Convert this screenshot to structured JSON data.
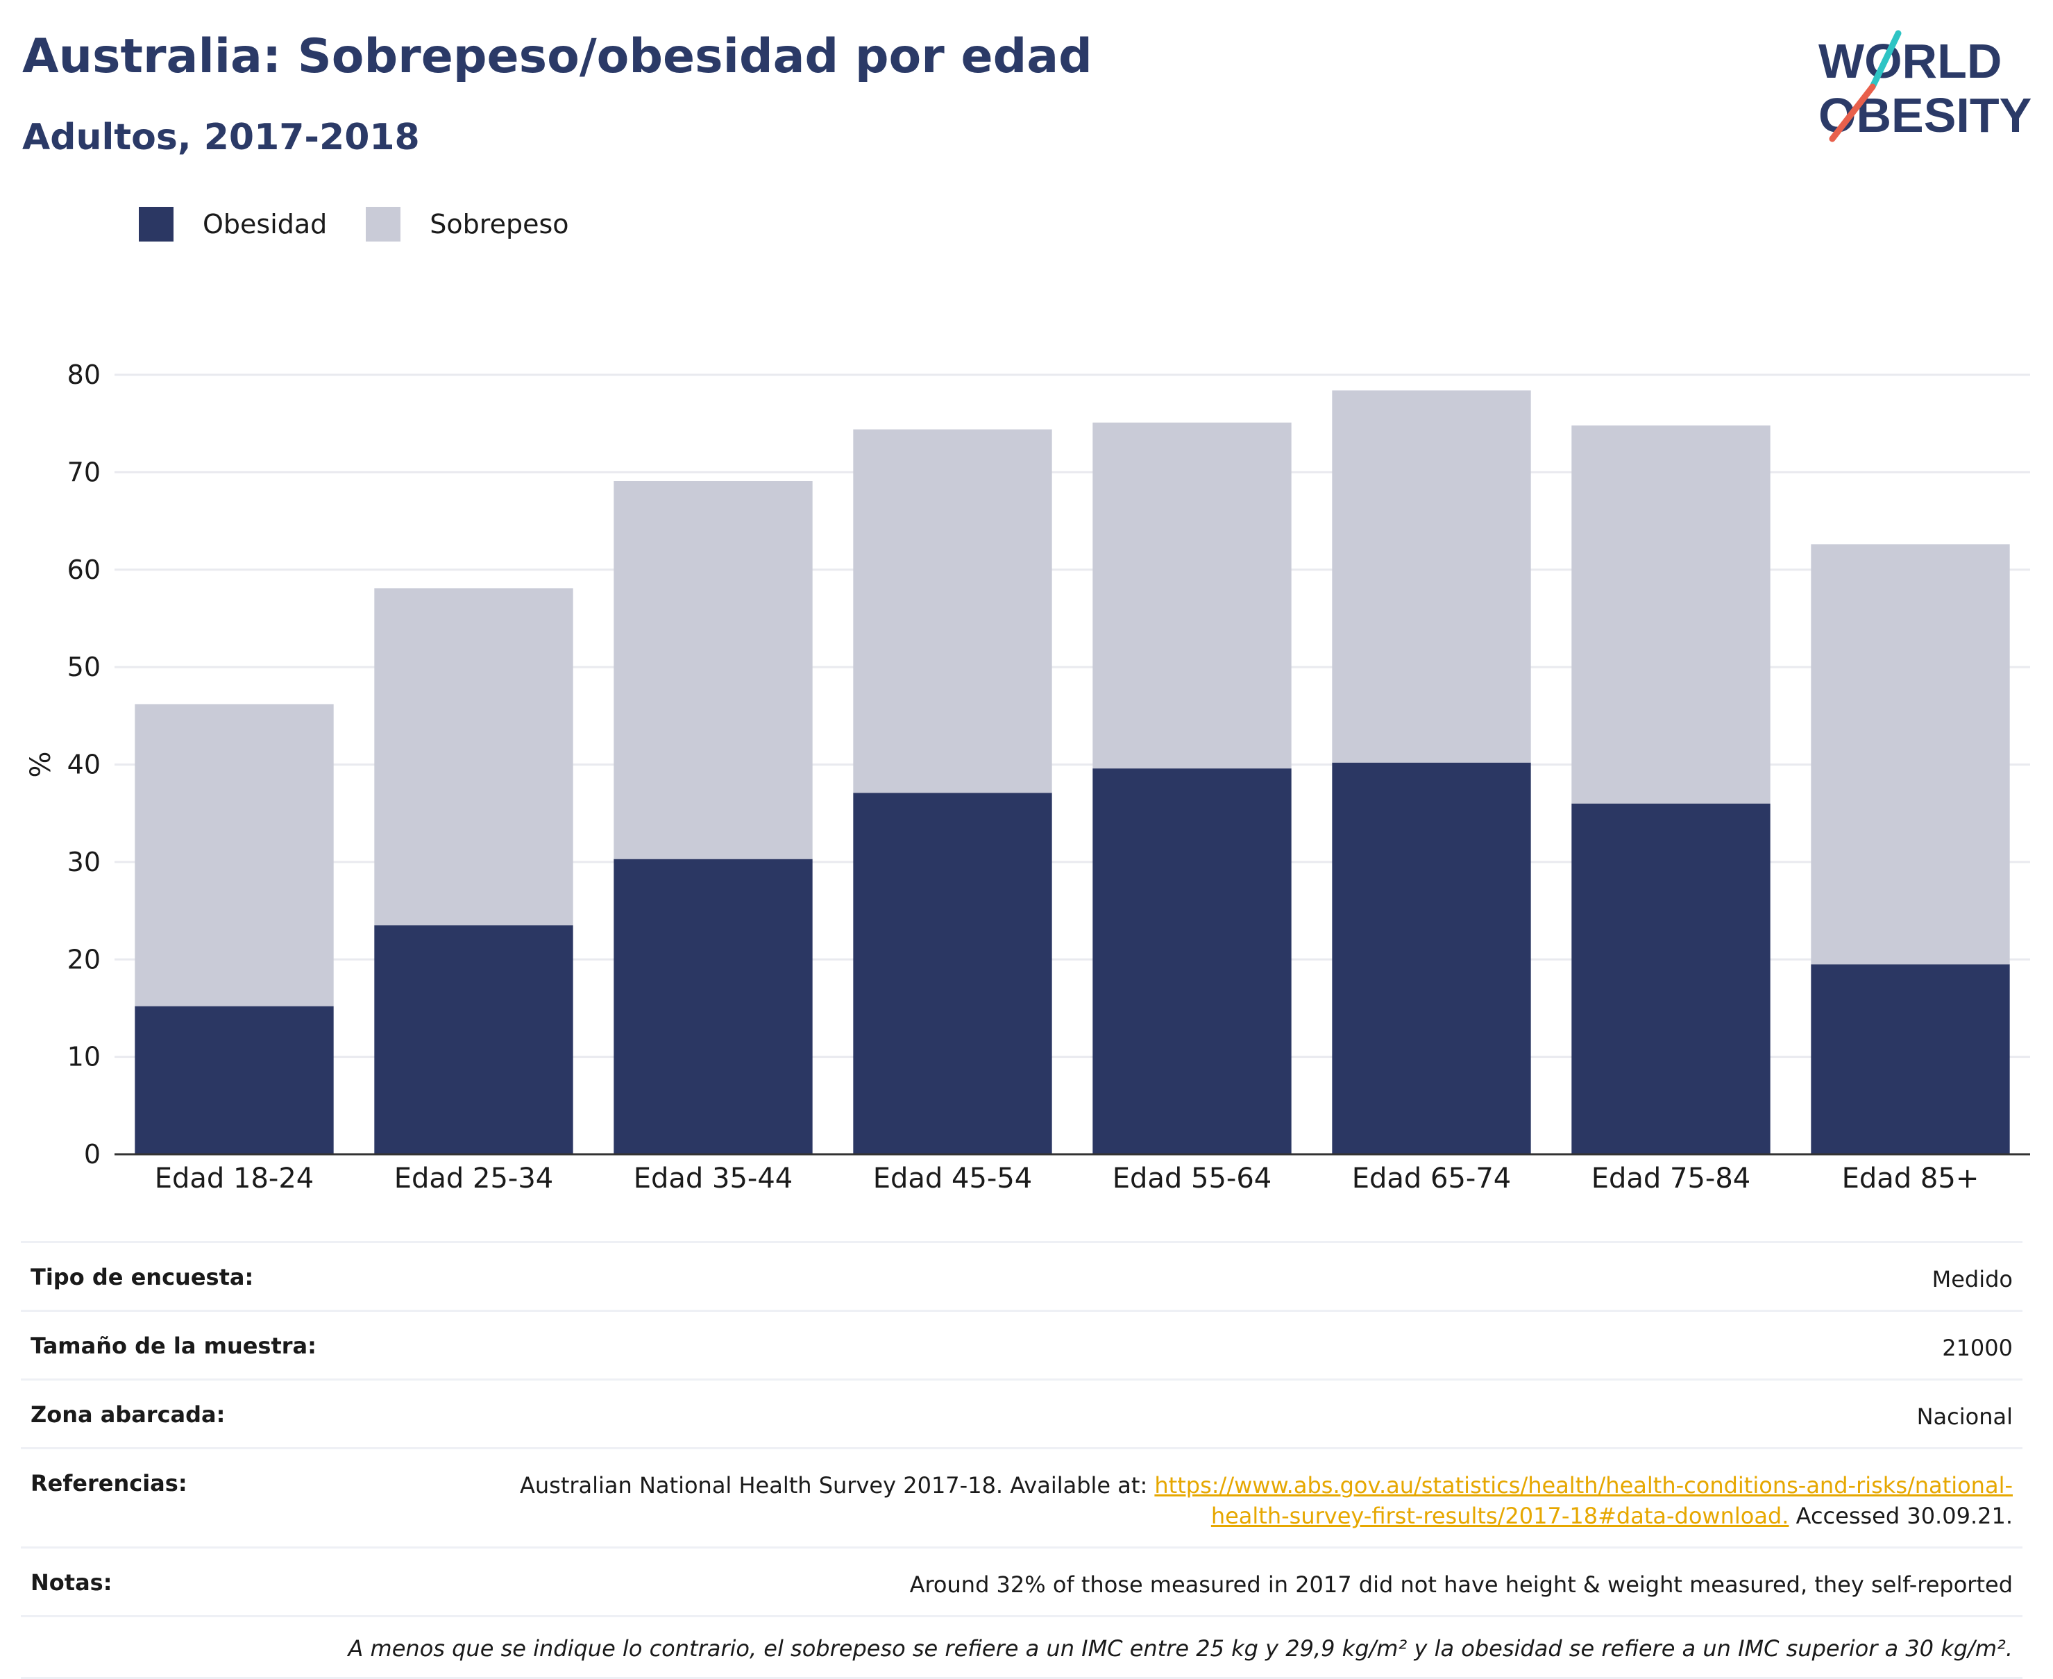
{
  "title": "Australia: Sobrepeso/obesidad por edad",
  "subtitle": "Adultos, 2017-2018",
  "logo": {
    "line1": "WORLD",
    "line2": "OBESITY"
  },
  "legend": [
    {
      "label": "Obesidad",
      "color": "#2b3763"
    },
    {
      "label": "Sobrepeso",
      "color": "#c9cbd7"
    }
  ],
  "chart_data": {
    "type": "bar",
    "stacked": true,
    "categories": [
      "Edad 18-24",
      "Edad 25-34",
      "Edad 35-44",
      "Edad 45-54",
      "Edad 55-64",
      "Edad 65-74",
      "Edad 75-84",
      "Edad 85+"
    ],
    "series": [
      {
        "name": "Obesidad",
        "color": "#2b3763",
        "values": [
          15.2,
          23.5,
          30.3,
          37.1,
          39.6,
          40.2,
          36.0,
          19.5
        ]
      },
      {
        "name": "Sobrepeso",
        "color": "#c9cbd7",
        "values": [
          31.0,
          34.6,
          38.8,
          37.3,
          35.5,
          38.2,
          38.8,
          43.1
        ]
      }
    ],
    "ylabel": "%",
    "ylim": [
      0,
      80
    ],
    "yticks": [
      0,
      10,
      20,
      30,
      40,
      50,
      60,
      70,
      80
    ],
    "grid": true,
    "legend_position": "top-left"
  },
  "info": {
    "survey_type_label": "Tipo de encuesta:",
    "survey_type_value": "Medido",
    "sample_size_label": "Tamaño de la muestra:",
    "sample_size_value": "21000",
    "area_label": "Zona abarcada:",
    "area_value": "Nacional",
    "references_label": "Referencias:",
    "references_text": "Australian National Health Survey 2017-18. Available at: ",
    "references_link": "https://www.abs.gov.au/statistics/health/health-conditions-and-risks/national-health-survey-first-results/2017-18#data-download.",
    "references_accessed": " Accessed 30.09.21.",
    "notes_label": "Notas:",
    "notes_value": "Around 32% of those measured in 2017 did not have height & weight measured, they self-reported",
    "footnote": "A menos que se indique lo contrario, el sobrepeso se refiere a un IMC entre 25 kg y 29,9 kg/m² y la obesidad se refiere a un IMC superior a 30 kg/m²."
  }
}
